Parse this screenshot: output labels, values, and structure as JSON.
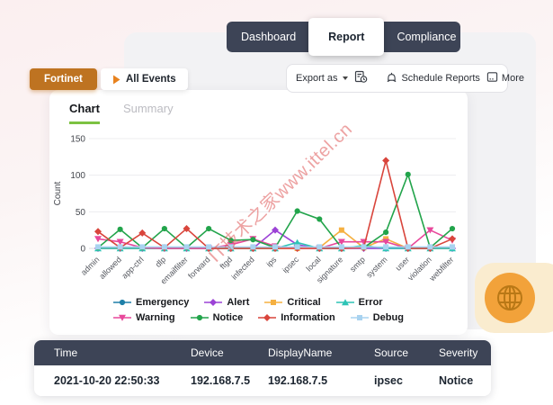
{
  "colors": {
    "navy": "#3D4456",
    "accent_orange": "#BE7321",
    "accent_green": "#7CC242",
    "watermark_red": "#DE5656",
    "globe_orange": "#F2A23A",
    "globe_stroke": "#B97816"
  },
  "watermark_text": "IT技术之家www.ittel.cn",
  "top_tabs": [
    {
      "label": "Dashboard",
      "active": false
    },
    {
      "label": "Report",
      "active": true
    },
    {
      "label": "Compliance",
      "active": false
    }
  ],
  "filters": {
    "vendor_label": "Fortinet",
    "events_label": "All Events"
  },
  "toolbar": {
    "export_label": "Export as",
    "schedule_label": "Schedule Reports",
    "more_label": "More"
  },
  "card_tabs": {
    "chart_label": "Chart",
    "summary_label": "Summary"
  },
  "chart_data": {
    "type": "line",
    "title": "",
    "xlabel": "",
    "ylabel": "Count",
    "ylim": [
      0,
      150
    ],
    "yticks": [
      0,
      50,
      100,
      150
    ],
    "grid": true,
    "legend_position": "bottom",
    "categories": [
      "admin",
      "allowed",
      "app-ctrl",
      "dlp",
      "emailfilter",
      "forward",
      "ftgd",
      "infected",
      "ips",
      "ipsec",
      "local",
      "signature",
      "smtp",
      "system",
      "user",
      "violation",
      "webfilter"
    ],
    "series": [
      {
        "name": "Emergency",
        "color": "#1E7FA8",
        "marker": "circle",
        "values": [
          1,
          1,
          1,
          1,
          1,
          1,
          1,
          1,
          1,
          1,
          1,
          1,
          1,
          1,
          1,
          1,
          1
        ]
      },
      {
        "name": "Alert",
        "color": "#9C43D6",
        "marker": "diamond",
        "values": [
          0,
          0,
          0,
          0,
          0,
          0,
          0,
          0,
          25,
          5,
          0,
          0,
          0,
          0,
          0,
          0,
          0
        ]
      },
      {
        "name": "Critical",
        "color": "#F5B041",
        "marker": "square",
        "values": [
          0,
          0,
          0,
          0,
          0,
          0,
          0,
          0,
          0,
          0,
          1,
          25,
          1,
          13,
          0,
          0,
          0
        ]
      },
      {
        "name": "Error",
        "color": "#2EC4B6",
        "marker": "triangle-up",
        "values": [
          0,
          0,
          0,
          0,
          0,
          0,
          0,
          0,
          0,
          8,
          0,
          0,
          4,
          0,
          0,
          0,
          0
        ]
      },
      {
        "name": "Warning",
        "color": "#E8489B",
        "marker": "triangle-down",
        "values": [
          13,
          9,
          1,
          0,
          0,
          0,
          5,
          13,
          3,
          0,
          0,
          9,
          9,
          9,
          0,
          25,
          11
        ]
      },
      {
        "name": "Notice",
        "color": "#22A44B",
        "marker": "circle",
        "values": [
          1,
          26,
          1,
          27,
          1,
          27,
          11,
          12,
          1,
          51,
          40,
          1,
          1,
          22,
          101,
          1,
          27
        ]
      },
      {
        "name": "Information",
        "color": "#D9453C",
        "marker": "diamond",
        "values": [
          23,
          1,
          21,
          1,
          27,
          0,
          0,
          0,
          0,
          0,
          0,
          0,
          1,
          120,
          0,
          0,
          13
        ]
      },
      {
        "name": "Debug",
        "color": "#A9D3F0",
        "marker": "square",
        "values": [
          2,
          2,
          2,
          2,
          2,
          2,
          2,
          2,
          2,
          2,
          2,
          2,
          2,
          2,
          2,
          2,
          2
        ]
      }
    ]
  },
  "table": {
    "columns": [
      "Time",
      "Device",
      "DisplayName",
      "Source",
      "Severity"
    ],
    "rows": [
      [
        "2021-10-20 22:50:33",
        "192.168.7.5",
        "192.168.7.5",
        "ipsec",
        "Notice"
      ]
    ]
  }
}
